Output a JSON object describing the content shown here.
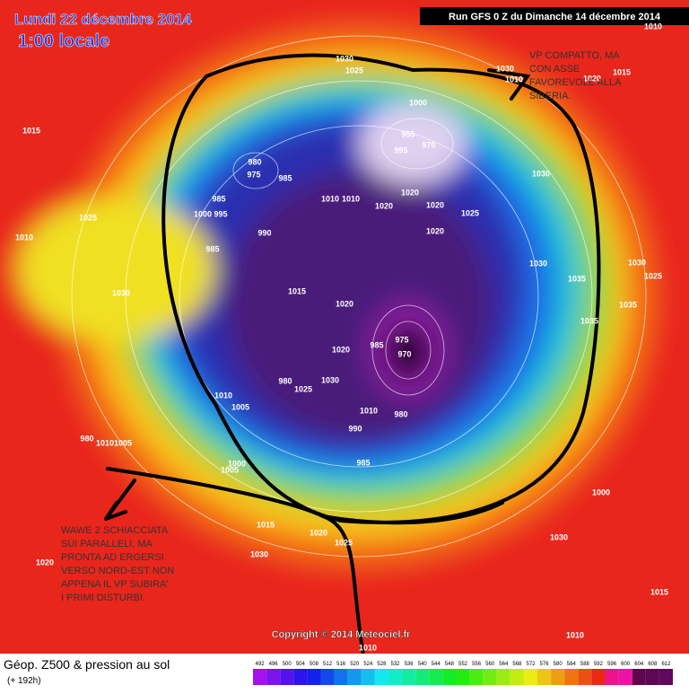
{
  "header": {
    "date": "Lundi 22 décembre 2014",
    "time": "1:00 locale",
    "run": "Run GFS 0 Z du Dimanche 14 décembre 2014"
  },
  "annotations": [
    {
      "lines": [
        "VP COMPATTO, MA",
        "CON ASSE",
        "FAVOREVOLE ALLA",
        "SIBERIA."
      ]
    },
    {
      "lines": [
        "WAWE 2 SCHIACCIATA",
        "SUI PARALLELI, MA",
        "PRONTA AD ERGERSI",
        "VERSO NORD-EST NON",
        "APPENA IL VP SUBIRA'",
        "I PRIMI DISTURBI."
      ]
    }
  ],
  "pressure_labels": [
    "1030",
    "1025",
    "1030",
    "1010",
    "1020",
    "1015",
    "1010",
    "1000",
    "955",
    "995",
    "970",
    "980",
    "975",
    "985",
    "1030",
    "1015",
    "1025",
    "1010",
    "1000",
    "995",
    "985",
    "985",
    "990",
    "1010",
    "1010",
    "1020",
    "1020",
    "1020",
    "1025",
    "1020",
    "1030",
    "1030",
    "1035",
    "1025",
    "1035",
    "1035",
    "1030",
    "1015",
    "1020",
    "975",
    "970",
    "985",
    "980",
    "1025",
    "1030",
    "1010",
    "1005",
    "1010",
    "980",
    "990",
    "985",
    "980",
    "1010",
    "1005",
    "1000",
    "1005",
    "1000",
    "1015",
    "1020",
    "1025",
    "1030",
    "1030",
    "1020",
    "1015",
    "1010",
    "1010",
    "1020"
  ],
  "copyright": "Copyright © 2014 Meteociel.fr",
  "footer": {
    "title": "Géop. Z500 & pression au sol",
    "subtitle": "(+ 192h)",
    "scale": [
      492,
      496,
      500,
      504,
      508,
      512,
      516,
      520,
      524,
      528,
      532,
      536,
      540,
      544,
      548,
      552,
      556,
      560,
      564,
      568,
      572,
      576,
      580,
      584,
      588,
      592,
      596,
      600,
      604,
      608,
      612
    ]
  }
}
